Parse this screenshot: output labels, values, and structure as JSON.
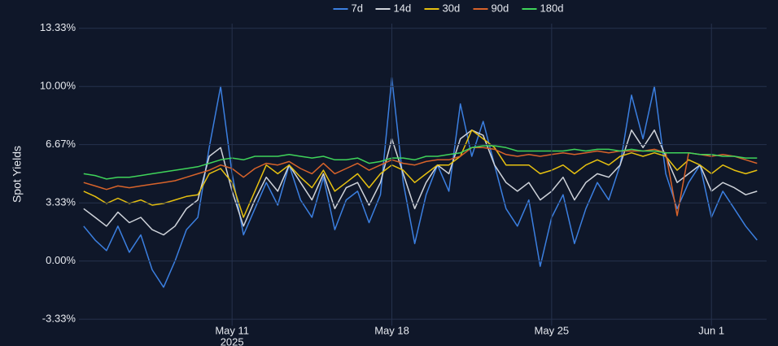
{
  "chart_data": {
    "type": "line",
    "y_label": "Spot Yields",
    "x": [
      "2025-05-04T12:00",
      "2025-05-05T00:00",
      "2025-05-05T12:00",
      "2025-05-06T00:00",
      "2025-05-06T12:00",
      "2025-05-07T00:00",
      "2025-05-07T12:00",
      "2025-05-08T00:00",
      "2025-05-08T12:00",
      "2025-05-09T00:00",
      "2025-05-09T12:00",
      "2025-05-10T00:00",
      "2025-05-10T12:00",
      "2025-05-11T00:00",
      "2025-05-11T12:00",
      "2025-05-12T00:00",
      "2025-05-12T12:00",
      "2025-05-13T00:00",
      "2025-05-13T12:00",
      "2025-05-14T00:00",
      "2025-05-14T12:00",
      "2025-05-15T00:00",
      "2025-05-15T12:00",
      "2025-05-16T00:00",
      "2025-05-16T12:00",
      "2025-05-17T00:00",
      "2025-05-17T12:00",
      "2025-05-18T00:00",
      "2025-05-18T12:00",
      "2025-05-19T00:00",
      "2025-05-19T12:00",
      "2025-05-20T00:00",
      "2025-05-20T12:00",
      "2025-05-21T00:00",
      "2025-05-21T12:00",
      "2025-05-22T00:00",
      "2025-05-22T12:00",
      "2025-05-23T00:00",
      "2025-05-23T12:00",
      "2025-05-24T00:00",
      "2025-05-24T12:00",
      "2025-05-25T00:00",
      "2025-05-25T12:00",
      "2025-05-26T00:00",
      "2025-05-26T12:00",
      "2025-05-27T00:00",
      "2025-05-27T12:00",
      "2025-05-28T00:00",
      "2025-05-28T12:00",
      "2025-05-29T00:00",
      "2025-05-29T12:00",
      "2025-05-30T00:00",
      "2025-05-30T12:00",
      "2025-05-31T00:00",
      "2025-05-31T12:00",
      "2025-06-01T00:00",
      "2025-06-01T12:00",
      "2025-06-02T00:00",
      "2025-06-02T12:00",
      "2025-06-03T00:00"
    ],
    "series": [
      {
        "name": "7d",
        "color": "#3b7fe0",
        "values": [
          2.0,
          1.2,
          0.6,
          2.0,
          0.5,
          1.5,
          -0.5,
          -1.5,
          0.0,
          1.8,
          2.5,
          6.5,
          10.0,
          5.0,
          1.5,
          3.0,
          4.5,
          3.2,
          5.5,
          3.5,
          2.5,
          4.8,
          1.8,
          3.5,
          4.0,
          2.2,
          3.8,
          10.5,
          4.5,
          1.0,
          3.8,
          5.5,
          4.0,
          9.0,
          6.0,
          8.0,
          5.5,
          3.0,
          2.0,
          3.5,
          -0.3,
          2.5,
          3.8,
          1.0,
          3.0,
          4.5,
          3.5,
          5.5,
          9.5,
          7.0,
          10.0,
          5.0,
          3.0,
          4.5,
          5.5,
          2.5,
          4.0,
          3.0,
          2.0,
          1.2
        ]
      },
      {
        "name": "14d",
        "color": "#cfd3da",
        "values": [
          3.0,
          2.5,
          2.0,
          2.8,
          2.2,
          2.5,
          1.8,
          1.5,
          2.0,
          3.0,
          3.5,
          6.0,
          6.5,
          4.0,
          2.0,
          3.5,
          4.8,
          4.0,
          5.5,
          4.5,
          3.5,
          5.0,
          3.0,
          4.2,
          4.5,
          3.2,
          4.5,
          7.0,
          5.0,
          3.0,
          4.5,
          5.5,
          5.0,
          7.0,
          7.5,
          7.2,
          5.5,
          4.5,
          4.0,
          4.5,
          3.5,
          4.0,
          4.8,
          3.5,
          4.5,
          5.0,
          4.8,
          5.5,
          7.5,
          6.5,
          7.5,
          6.0,
          4.5,
          5.0,
          5.5,
          4.0,
          4.5,
          4.2,
          3.8,
          4.0
        ]
      },
      {
        "name": "30d",
        "color": "#e6c010",
        "values": [
          4.0,
          3.7,
          3.3,
          3.6,
          3.3,
          3.5,
          3.2,
          3.3,
          3.5,
          3.7,
          3.8,
          5.0,
          5.3,
          4.5,
          2.5,
          4.0,
          5.5,
          5.0,
          5.5,
          4.8,
          4.2,
          5.2,
          4.0,
          4.5,
          5.0,
          4.2,
          5.0,
          5.5,
          5.2,
          4.5,
          5.0,
          5.5,
          5.5,
          6.0,
          7.5,
          7.0,
          6.5,
          5.5,
          5.5,
          5.5,
          5.0,
          5.2,
          5.5,
          5.0,
          5.5,
          5.8,
          5.5,
          6.0,
          6.2,
          6.0,
          6.2,
          6.0,
          5.2,
          5.8,
          5.5,
          5.0,
          5.5,
          5.2,
          5.0,
          5.2
        ]
      },
      {
        "name": "90d",
        "color": "#d8632a",
        "values": [
          4.5,
          4.3,
          4.1,
          4.3,
          4.2,
          4.3,
          4.4,
          4.5,
          4.6,
          4.8,
          5.0,
          5.2,
          5.5,
          5.3,
          4.8,
          5.3,
          5.6,
          5.5,
          5.7,
          5.3,
          5.0,
          5.6,
          5.0,
          5.3,
          5.6,
          5.2,
          5.5,
          5.8,
          5.6,
          5.5,
          5.7,
          5.8,
          5.8,
          6.0,
          6.5,
          6.5,
          6.4,
          6.1,
          6.0,
          6.1,
          6.0,
          6.1,
          6.2,
          6.1,
          6.2,
          6.3,
          6.2,
          6.3,
          6.3,
          6.3,
          6.4,
          6.2,
          2.6,
          6.2,
          6.1,
          6.0,
          6.1,
          6.0,
          5.8,
          5.6
        ]
      },
      {
        "name": "180d",
        "color": "#3fd45a",
        "values": [
          5.0,
          4.9,
          4.7,
          4.8,
          4.8,
          4.9,
          5.0,
          5.1,
          5.2,
          5.3,
          5.4,
          5.6,
          5.8,
          5.9,
          5.8,
          6.0,
          6.0,
          6.0,
          6.1,
          6.0,
          5.9,
          6.0,
          5.8,
          5.8,
          5.9,
          5.6,
          5.7,
          5.9,
          5.9,
          5.8,
          6.0,
          6.0,
          6.1,
          6.2,
          6.5,
          6.6,
          6.6,
          6.5,
          6.3,
          6.3,
          6.3,
          6.3,
          6.3,
          6.4,
          6.3,
          6.4,
          6.4,
          6.3,
          6.4,
          6.3,
          6.3,
          6.2,
          6.2,
          6.2,
          6.1,
          6.1,
          6.0,
          6.0,
          5.9,
          5.9
        ]
      }
    ],
    "xlim": [
      "2025-05-04T07:00",
      "2025-06-03T10:00"
    ],
    "xticks": [
      {
        "value": "2025-05-11T00:00",
        "label": "May 11"
      },
      {
        "value": "2025-05-18T00:00",
        "label": "May 18"
      },
      {
        "value": "2025-05-25T00:00",
        "label": "May 25"
      },
      {
        "value": "2025-06-01T00:00",
        "label": "Jun 1"
      }
    ],
    "year_label": "2025",
    "ylim": [
      -3.7,
      13.6
    ],
    "yticks": [
      {
        "value": -3.33,
        "label": "-3.33%"
      },
      {
        "value": 0,
        "label": "0.00%"
      },
      {
        "value": 3.33,
        "label": "3.33%"
      },
      {
        "value": 6.67,
        "label": "6.67%"
      },
      {
        "value": 10,
        "label": "10.00%"
      },
      {
        "value": 13.33,
        "label": "13.33%"
      }
    ],
    "grid": true,
    "legend": "top"
  }
}
